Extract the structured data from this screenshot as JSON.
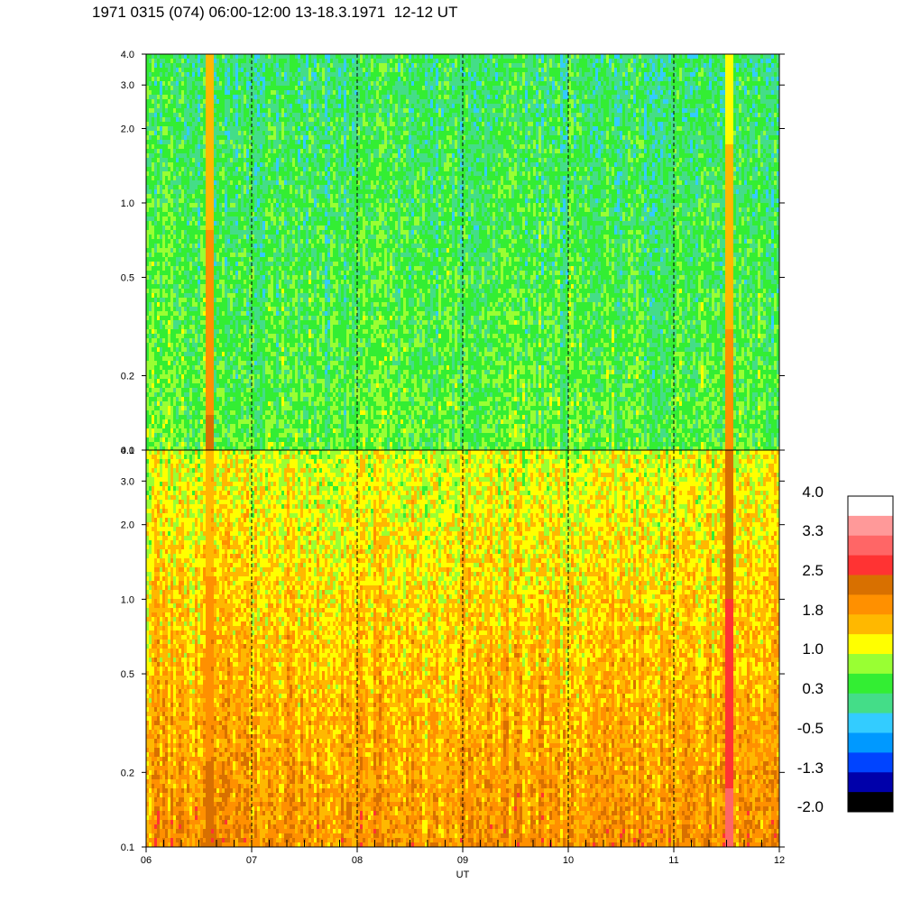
{
  "title": "1971 0315 (074) 06:00-12:00 13-18.3.1971  12-12 UT",
  "chart_data": {
    "type": "heatmap",
    "title": "1971 0315 (074) 06:00-12:00 13-18.3.1971  12-12 UT",
    "xlabel": "UT",
    "x_ticks": [
      "06",
      "07",
      "08",
      "09",
      "10",
      "11",
      "12"
    ],
    "x_range": [
      6,
      12
    ],
    "y_scale": "log",
    "y_range": [
      0.1,
      4.0
    ],
    "y_ticks": [
      "0.1",
      "0.2",
      "0.5",
      "1.0",
      "2.0",
      "3.0",
      "4.0"
    ],
    "y_tick_values": [
      0.1,
      0.2,
      0.5,
      1.0,
      2.0,
      3.0,
      4.0
    ],
    "hour_markers": [
      7,
      8,
      9,
      10,
      11
    ],
    "panels": [
      {
        "name": "upper",
        "dominant_level": 0.3,
        "variation": 0.55,
        "features": [
          {
            "x": 6.58,
            "level": 2.2
          },
          {
            "x": 11.52,
            "level": 2.0
          }
        ]
      },
      {
        "name": "lower",
        "dominant_level": 1.6,
        "variation": 0.6,
        "features": [
          {
            "x": 6.58,
            "level": 2.3
          },
          {
            "x": 11.52,
            "level": 3.0
          }
        ]
      }
    ],
    "colorbar": {
      "labels": [
        "4.0",
        "3.3",
        "2.5",
        "1.8",
        "1.0",
        "0.3",
        "-0.5",
        "-1.3",
        "-2.0"
      ],
      "colors": [
        "#ffffff",
        "#ff9999",
        "#ff6666",
        "#ff3333",
        "#d87000",
        "#ff9000",
        "#ffb800",
        "#ffff00",
        "#99ff33",
        "#33ee33",
        "#44dd88",
        "#33ccff",
        "#0099ff",
        "#0044ff",
        "#0000aa",
        "#000000"
      ]
    }
  }
}
